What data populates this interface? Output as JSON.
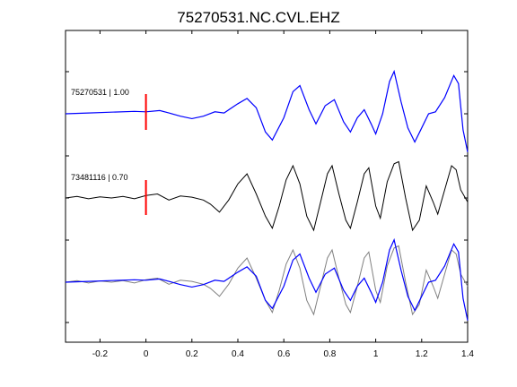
{
  "chart_data": {
    "type": "line",
    "title": "75270531.NC.CVL.EHZ",
    "xlabel": "",
    "ylabel": "",
    "xlim": [
      -0.35,
      1.4
    ],
    "x_ticks": [
      -0.2,
      0,
      0.2,
      0.4,
      0.6,
      0.8,
      1,
      1.2,
      1.4
    ],
    "x_tick_labels": [
      "-0.2",
      "0",
      "0.2",
      "0.4",
      "0.6",
      "0.8",
      "1",
      "1.2",
      "1.4"
    ],
    "y_ticks_visible_labels": false,
    "grid": false,
    "pick_time": 0,
    "pick_color": "#ff0000",
    "traces": [
      {
        "label": "75270531 | 1.00",
        "color": "#0000ff",
        "panel": 1,
        "points": [
          [
            -0.35,
            0.0
          ],
          [
            -0.25,
            0.02
          ],
          [
            -0.15,
            0.04
          ],
          [
            -0.05,
            0.06
          ],
          [
            0.0,
            0.05
          ],
          [
            0.06,
            0.08
          ],
          [
            0.1,
            0.02
          ],
          [
            0.15,
            -0.06
          ],
          [
            0.2,
            -0.12
          ],
          [
            0.25,
            -0.06
          ],
          [
            0.3,
            0.05
          ],
          [
            0.34,
            0.02
          ],
          [
            0.4,
            0.25
          ],
          [
            0.44,
            0.38
          ],
          [
            0.48,
            0.15
          ],
          [
            0.52,
            -0.45
          ],
          [
            0.55,
            -0.65
          ],
          [
            0.6,
            -0.1
          ],
          [
            0.64,
            0.55
          ],
          [
            0.67,
            0.7
          ],
          [
            0.71,
            0.1
          ],
          [
            0.74,
            -0.25
          ],
          [
            0.78,
            0.2
          ],
          [
            0.82,
            0.35
          ],
          [
            0.86,
            -0.2
          ],
          [
            0.89,
            -0.45
          ],
          [
            0.92,
            -0.1
          ],
          [
            0.95,
            0.1
          ],
          [
            0.98,
            -0.25
          ],
          [
            1.0,
            -0.5
          ],
          [
            1.03,
            0.0
          ],
          [
            1.06,
            0.8
          ],
          [
            1.08,
            1.05
          ],
          [
            1.11,
            0.3
          ],
          [
            1.14,
            -0.35
          ],
          [
            1.17,
            -0.7
          ],
          [
            1.2,
            -0.35
          ],
          [
            1.23,
            0.0
          ],
          [
            1.26,
            0.05
          ],
          [
            1.3,
            0.4
          ],
          [
            1.34,
            0.95
          ],
          [
            1.36,
            0.75
          ],
          [
            1.38,
            -0.4
          ],
          [
            1.4,
            -0.95
          ]
        ]
      },
      {
        "label": "73481116 | 0.70",
        "color": "#000000",
        "panel": 2,
        "points": [
          [
            -0.35,
            0.0
          ],
          [
            -0.3,
            0.04
          ],
          [
            -0.25,
            -0.02
          ],
          [
            -0.2,
            0.03
          ],
          [
            -0.15,
            0.0
          ],
          [
            -0.1,
            0.04
          ],
          [
            -0.05,
            -0.02
          ],
          [
            0.0,
            0.06
          ],
          [
            0.05,
            0.1
          ],
          [
            0.1,
            -0.05
          ],
          [
            0.15,
            0.05
          ],
          [
            0.2,
            0.02
          ],
          [
            0.25,
            -0.05
          ],
          [
            0.28,
            -0.15
          ],
          [
            0.32,
            -0.35
          ],
          [
            0.36,
            -0.05
          ],
          [
            0.4,
            0.35
          ],
          [
            0.44,
            0.6
          ],
          [
            0.48,
            0.1
          ],
          [
            0.52,
            -0.45
          ],
          [
            0.55,
            -0.75
          ],
          [
            0.58,
            -0.2
          ],
          [
            0.61,
            0.45
          ],
          [
            0.64,
            0.8
          ],
          [
            0.67,
            0.35
          ],
          [
            0.7,
            -0.45
          ],
          [
            0.73,
            -0.8
          ],
          [
            0.76,
            -0.1
          ],
          [
            0.79,
            0.6
          ],
          [
            0.81,
            0.8
          ],
          [
            0.84,
            0.1
          ],
          [
            0.87,
            -0.55
          ],
          [
            0.89,
            -0.75
          ],
          [
            0.92,
            -0.1
          ],
          [
            0.95,
            0.6
          ],
          [
            0.97,
            0.75
          ],
          [
            1.0,
            -0.2
          ],
          [
            1.02,
            -0.5
          ],
          [
            1.05,
            0.4
          ],
          [
            1.08,
            0.85
          ],
          [
            1.1,
            0.9
          ],
          [
            1.13,
            0.0
          ],
          [
            1.16,
            -0.8
          ],
          [
            1.19,
            -0.55
          ],
          [
            1.22,
            0.3
          ],
          [
            1.25,
            -0.1
          ],
          [
            1.27,
            -0.4
          ],
          [
            1.3,
            0.2
          ],
          [
            1.33,
            0.8
          ],
          [
            1.35,
            0.7
          ],
          [
            1.37,
            0.2
          ],
          [
            1.4,
            -0.1
          ]
        ]
      }
    ]
  }
}
